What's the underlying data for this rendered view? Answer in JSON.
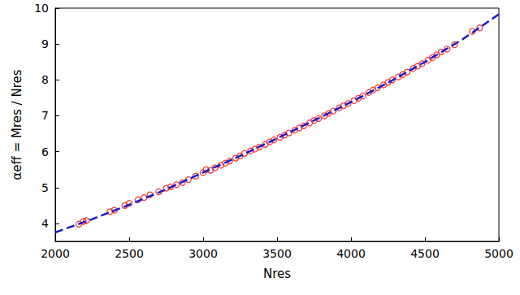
{
  "chart_data": {
    "type": "scatter",
    "x_label": "Nres",
    "y_label": "αeff = Mres / Nres",
    "xlim": [
      2000,
      5000
    ],
    "xticks": [
      2000,
      2500,
      3000,
      3500,
      4000,
      4500,
      5000
    ],
    "ylim": [
      3.5,
      10
    ],
    "yticks": [
      4,
      5,
      6,
      7,
      8,
      9,
      10
    ],
    "grid": false,
    "series": [
      {
        "type": "scatter",
        "color": "#ee1111",
        "marker": "open circle",
        "x": [
          2160,
          2190,
          2210,
          2370,
          2400,
          2470,
          2500,
          2560,
          2600,
          2640,
          2700,
          2750,
          2780,
          2820,
          2860,
          2900,
          2950,
          3000,
          3020,
          3050,
          3080,
          3120,
          3150,
          3180,
          3220,
          3250,
          3280,
          3320,
          3350,
          3380,
          3420,
          3450,
          3480,
          3520,
          3550,
          3580,
          3620,
          3650,
          3680,
          3720,
          3750,
          3780,
          3820,
          3850,
          3880,
          3920,
          3950,
          3980,
          4020,
          4050,
          4080,
          4120,
          4150,
          4180,
          4220,
          4250,
          4280,
          4320,
          4350,
          4380,
          4420,
          4450,
          4480,
          4520,
          4550,
          4580,
          4610,
          4650,
          4700,
          4820,
          4870
        ],
        "values": [
          3.98,
          4.05,
          4.08,
          4.33,
          4.37,
          4.5,
          4.56,
          4.66,
          4.72,
          4.8,
          4.88,
          4.98,
          5.02,
          5.08,
          5.14,
          5.22,
          5.32,
          5.42,
          5.5,
          5.48,
          5.55,
          5.62,
          5.68,
          5.74,
          5.82,
          5.88,
          5.95,
          6.02,
          6.07,
          6.13,
          6.2,
          6.27,
          6.33,
          6.4,
          6.46,
          6.52,
          6.6,
          6.66,
          6.72,
          6.8,
          6.87,
          6.92,
          7.0,
          7.07,
          7.13,
          7.22,
          7.28,
          7.34,
          7.42,
          7.49,
          7.55,
          7.65,
          7.72,
          7.78,
          7.86,
          7.93,
          8.0,
          8.08,
          8.15,
          8.22,
          8.32,
          8.38,
          8.45,
          8.55,
          8.62,
          8.7,
          8.78,
          8.86,
          8.98,
          9.35,
          9.45
        ]
      },
      {
        "type": "line",
        "color": "#1a1acc",
        "line_style": "dashed",
        "x": [
          2000,
          2250,
          2500,
          2750,
          3000,
          3250,
          3500,
          3750,
          4000,
          4250,
          4500,
          4750,
          5000
        ],
        "values": [
          3.75,
          4.12,
          4.52,
          4.95,
          5.42,
          5.88,
          6.37,
          6.87,
          7.38,
          7.92,
          8.5,
          9.12,
          9.83
        ]
      }
    ]
  }
}
